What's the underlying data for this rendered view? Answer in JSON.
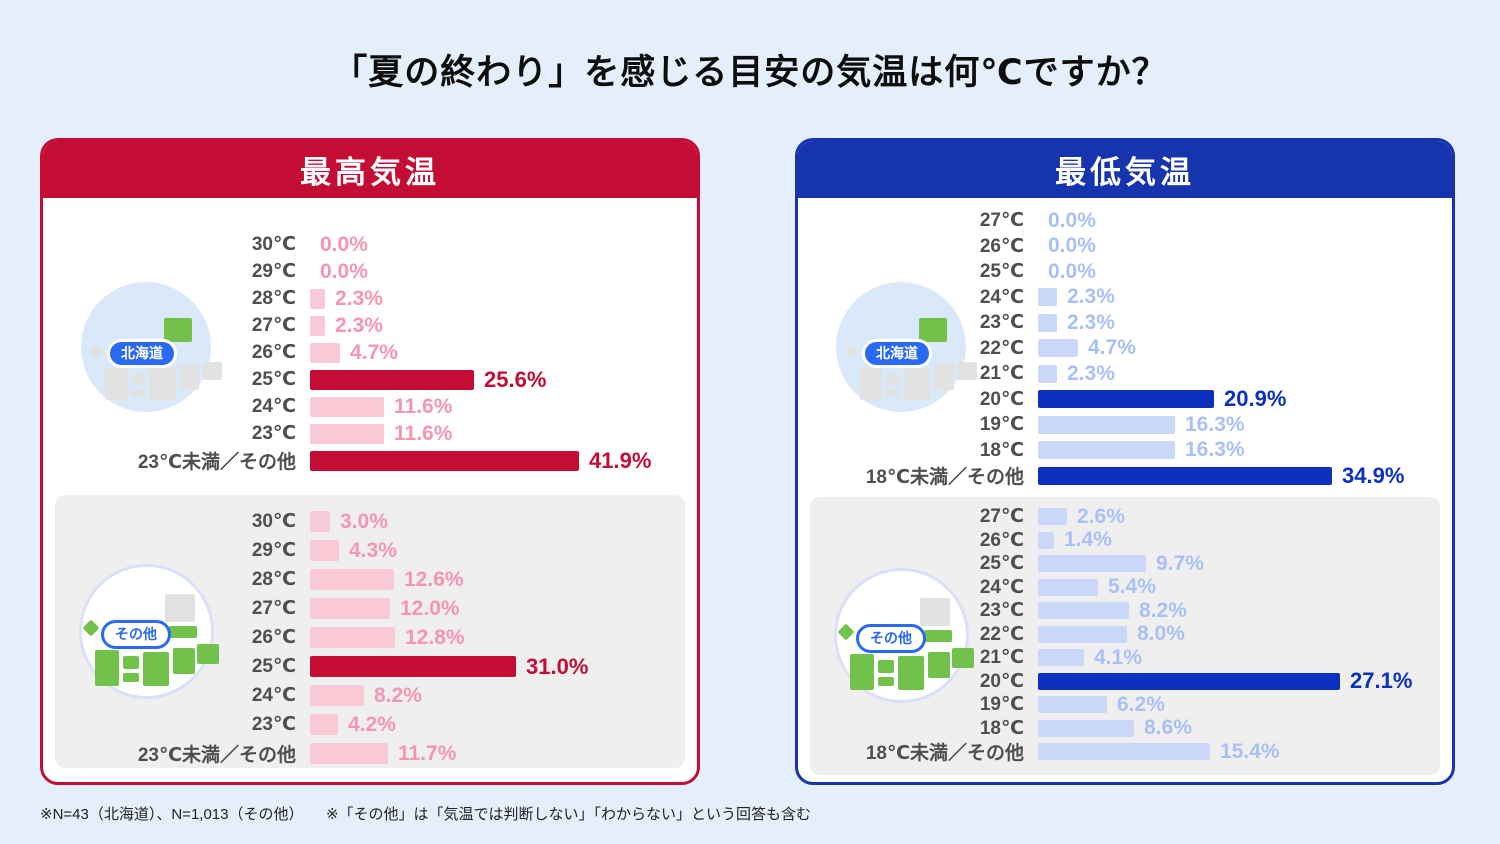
{
  "page": {
    "title": "「夏の終わり」を感じる目安の気温は何℃ですか？",
    "footnote": "※N=43（北海道）、N=1,013（その他）　　※「その他」は「気温では判断しない」「わからない」という回答も含む"
  },
  "colors": {
    "page_bg": "#E5EFFB",
    "section_gray": "#EFEFEF",
    "label_gray": "#4F4F4F",
    "pill_blue": "#2A6AF2",
    "map_green": "#72C14B",
    "map_gray": "#E2E2E2"
  },
  "chart_data": [
    {
      "type": "bar",
      "orientation": "horizontal",
      "title": "最高気温",
      "unit": "%",
      "colors": {
        "accent": "#C30D35",
        "bar_strong": "#C30D35",
        "bar_light": "#F9C9D6",
        "value_strong": "#C30D35",
        "value_light": "#F795B1"
      },
      "groups": [
        {
          "label": "北海道",
          "categories": [
            "30℃",
            "29℃",
            "28℃",
            "27℃",
            "26℃",
            "25℃",
            "24℃",
            "23℃",
            "23℃未満／その他"
          ],
          "values": [
            0.0,
            0.0,
            2.3,
            2.3,
            4.7,
            25.6,
            11.6,
            11.6,
            41.9
          ],
          "highlight_indices": [
            5,
            8
          ]
        },
        {
          "label": "その他",
          "categories": [
            "30℃",
            "29℃",
            "28℃",
            "27℃",
            "26℃",
            "25℃",
            "24℃",
            "23℃",
            "23℃未満／その他"
          ],
          "values": [
            3.0,
            4.3,
            12.6,
            12.0,
            12.8,
            31.0,
            8.2,
            4.2,
            11.7
          ],
          "highlight_indices": [
            5
          ]
        }
      ]
    },
    {
      "type": "bar",
      "orientation": "horizontal",
      "title": "最低気温",
      "unit": "%",
      "colors": {
        "accent": "#1534AE",
        "bar_strong": "#0B31BE",
        "bar_light": "#C9D7F8",
        "value_strong": "#0B31BE",
        "value_light": "#A9C0F7"
      },
      "groups": [
        {
          "label": "北海道",
          "categories": [
            "27℃",
            "26℃",
            "25℃",
            "24℃",
            "23℃",
            "22℃",
            "21℃",
            "20℃",
            "19℃",
            "18℃",
            "18℃未満／その他"
          ],
          "values": [
            0.0,
            0.0,
            0.0,
            2.3,
            2.3,
            4.7,
            2.3,
            20.9,
            16.3,
            16.3,
            34.9
          ],
          "highlight_indices": [
            7,
            10
          ]
        },
        {
          "label": "その他",
          "categories": [
            "27℃",
            "26℃",
            "25℃",
            "24℃",
            "23℃",
            "22℃",
            "21℃",
            "20℃",
            "19℃",
            "18℃",
            "18℃未満／その他"
          ],
          "values": [
            2.6,
            1.4,
            9.7,
            5.4,
            8.2,
            8.0,
            4.1,
            27.1,
            6.2,
            8.6,
            15.4
          ],
          "highlight_indices": [
            7
          ]
        }
      ]
    }
  ]
}
